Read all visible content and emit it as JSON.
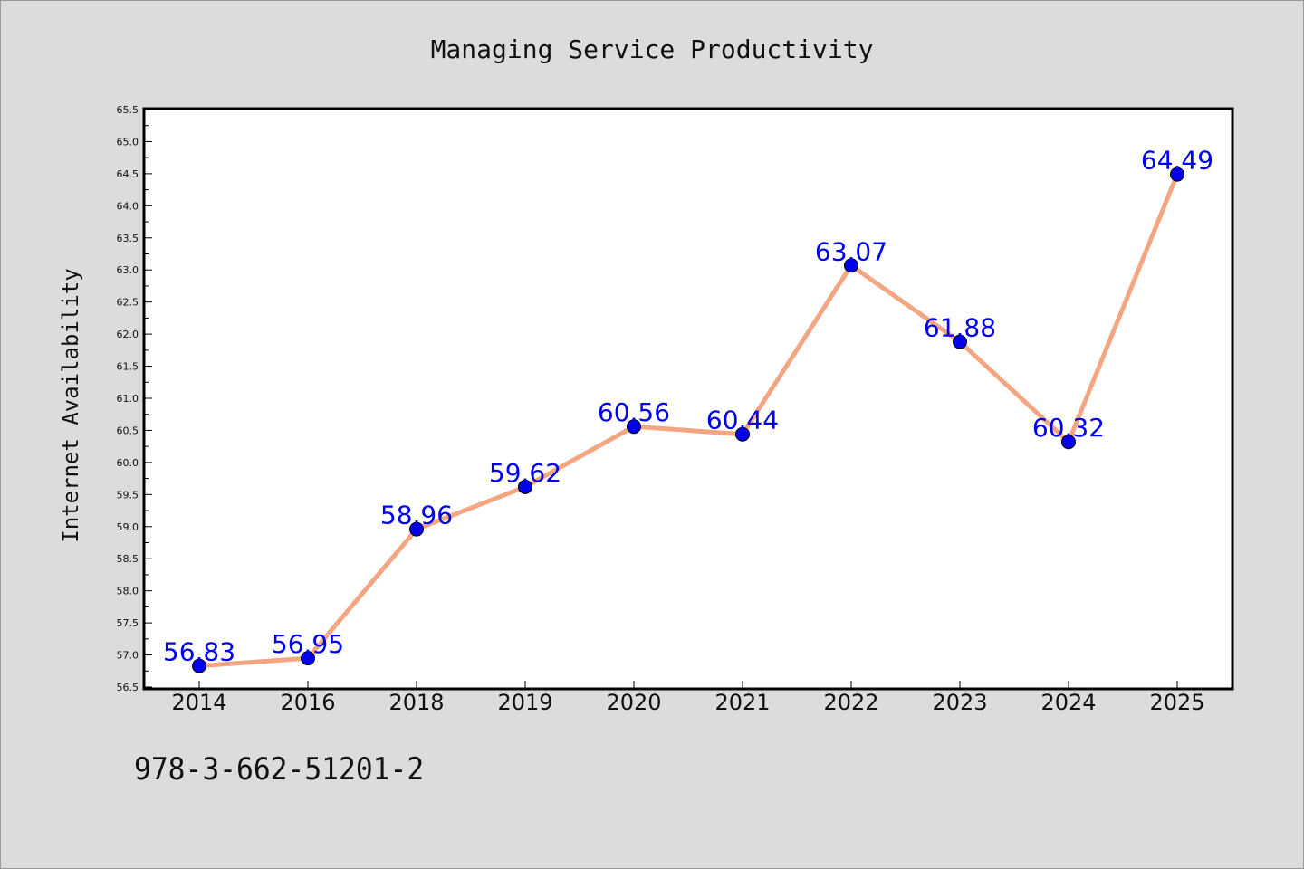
{
  "chart_data": {
    "type": "line",
    "title": "Managing Service Productivity",
    "xlabel": "",
    "ylabel": "Internet Availability",
    "categories": [
      "2014",
      "2016",
      "2018",
      "2019",
      "2020",
      "2021",
      "2022",
      "2023",
      "2024",
      "2025"
    ],
    "series": [
      {
        "values": [
          56.83,
          56.95,
          58.96,
          59.62,
          60.56,
          60.44,
          63.07,
          61.88,
          60.32,
          64.49
        ]
      }
    ],
    "data_labels": [
      "56.83",
      "56.95",
      "58.96",
      "59.62",
      "60.56",
      "60.44",
      "63.07",
      "61.88",
      "60.32",
      "64.49"
    ],
    "ylim": [
      56.5,
      65.5
    ],
    "y_ticks": [
      "56.5",
      "57.0",
      "57.5",
      "58.0",
      "58.5",
      "59.0",
      "59.5",
      "60.0",
      "60.5",
      "61.0",
      "61.5",
      "62.0",
      "62.5",
      "63.0",
      "63.5",
      "64.0",
      "64.5",
      "65.0",
      "65.5"
    ],
    "grid": false,
    "legend": "none",
    "colors": {
      "background": "#dcdcdc",
      "plot_background": "#ffffff",
      "line": "#f4a582",
      "marker": "#0000ee",
      "label": "#0000ee"
    }
  },
  "footer": {
    "isbn": "978-3-662-51201-2"
  }
}
